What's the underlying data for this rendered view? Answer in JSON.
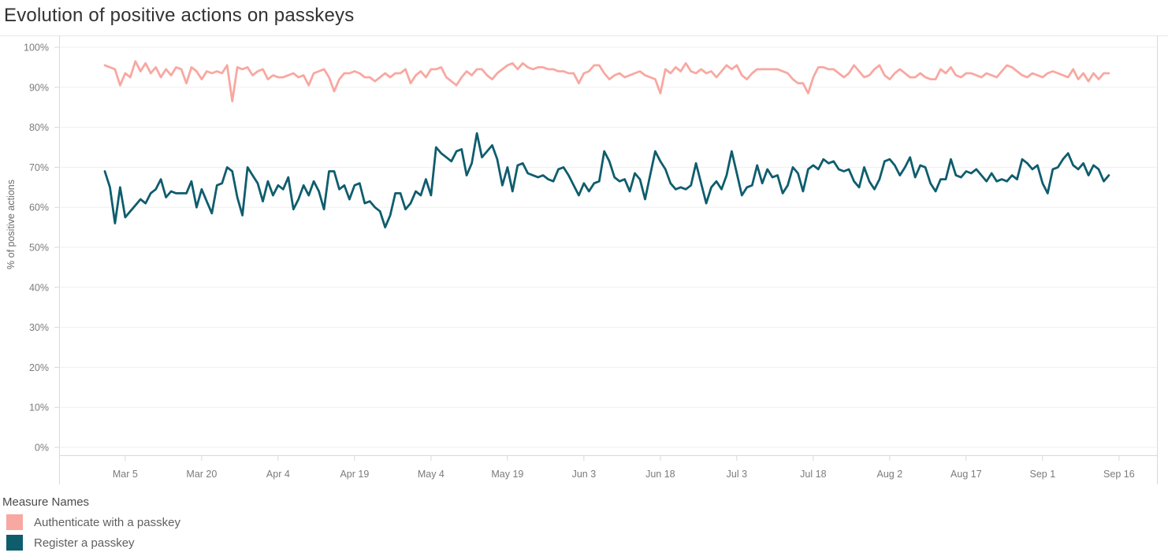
{
  "page": {
    "title": "Evolution of positive actions on passkeys"
  },
  "legend": {
    "title": "Measure Names"
  },
  "colors": {
    "authenticate_line": "#F8A8A1",
    "register_line": "#0E5D6D",
    "gridline": "#efefef",
    "axis_line": "#d9d9d9",
    "tick_label": "#7b7b7b",
    "title_text": "#323232"
  },
  "chart_data": {
    "type": "line",
    "title": "Evolution of positive actions on passkeys",
    "xlabel": "",
    "ylabel": "% of positive actions",
    "ylim": [
      0,
      100
    ],
    "grid": true,
    "legend_position": "bottom-left",
    "y_tick_values": [
      0,
      10,
      20,
      30,
      40,
      50,
      60,
      70,
      80,
      90,
      100
    ],
    "y_tick_labels": [
      "0%",
      "10%",
      "20%",
      "30%",
      "40%",
      "50%",
      "60%",
      "70%",
      "80%",
      "90%",
      "100%"
    ],
    "x_unit": "day",
    "x_start": "Mar 1",
    "x_end": "Sep 14",
    "x_tick_labels": [
      "Mar 5",
      "Mar 20",
      "Apr 4",
      "Apr 19",
      "May 4",
      "May 19",
      "Jun 3",
      "Jun 18",
      "Jul 3",
      "Jul 18",
      "Aug 2",
      "Aug 17",
      "Sep 1",
      "Sep 16"
    ],
    "x_tick_day_indices": [
      4,
      19,
      34,
      49,
      64,
      79,
      94,
      109,
      124,
      139,
      154,
      169,
      184,
      199
    ],
    "series": [
      {
        "name": "Authenticate with a passkey",
        "color": "#F8A8A1",
        "values": [
          95.5,
          95,
          94.5,
          90.5,
          93.5,
          92.5,
          96.5,
          94,
          96,
          93.5,
          95,
          92.5,
          94.5,
          93,
          95,
          94.5,
          91,
          95,
          94,
          92,
          94,
          93.5,
          94,
          93.5,
          95.5,
          86.5,
          95,
          94.5,
          95,
          93,
          94,
          94.5,
          92,
          93,
          92.5,
          92.5,
          93,
          93.5,
          92.5,
          93,
          90.5,
          93.5,
          94,
          94.5,
          92.5,
          89,
          92,
          93.5,
          93.5,
          94,
          93.5,
          92.5,
          92.5,
          91.5,
          92.5,
          93.5,
          92.5,
          93.5,
          93.5,
          94.5,
          91,
          93,
          94,
          92.5,
          94.5,
          94.5,
          95,
          92.5,
          91.5,
          90.5,
          92.5,
          94,
          93,
          94.5,
          94.5,
          93,
          92,
          93.5,
          94.5,
          95.5,
          96,
          94.5,
          96,
          95,
          94.5,
          95,
          95,
          94.5,
          94.5,
          94,
          94,
          93.5,
          93.5,
          91,
          93.5,
          94,
          95.5,
          95.5,
          93.5,
          92,
          93,
          93.5,
          92.5,
          93,
          93.5,
          94,
          93,
          92.5,
          92,
          88.5,
          94.5,
          93.5,
          95,
          94,
          96,
          94,
          93.5,
          94.5,
          93.5,
          94,
          92.5,
          94,
          95.5,
          94.5,
          95.5,
          93,
          92,
          93.5,
          94.5,
          94.5,
          94.5,
          94.5,
          94.5,
          94,
          93.5,
          92,
          91,
          91,
          88.5,
          92.5,
          95,
          95,
          94.5,
          94.5,
          93.5,
          92.5,
          93.5,
          95.5,
          94,
          92.5,
          93,
          94.5,
          95.5,
          93,
          92,
          93.5,
          94.5,
          93.5,
          92.5,
          92.5,
          93.5,
          92.5,
          92,
          92,
          94.5,
          93.5,
          95,
          93,
          92.5,
          93.5,
          93.5,
          93,
          92.5,
          93.5,
          93,
          92.5,
          94,
          95.5,
          95,
          94,
          93,
          92.5,
          93.5,
          93,
          92.5,
          93.5,
          94,
          93.5,
          93,
          92.5,
          94.5,
          92,
          93.5,
          91.5,
          93.5,
          92,
          93.5,
          93.5
        ]
      },
      {
        "name": "Register a passkey",
        "color": "#0E5D6D",
        "values": [
          69,
          65,
          56,
          65,
          57.5,
          59,
          60.5,
          62,
          61,
          63.5,
          64.5,
          67,
          62.5,
          64,
          63.5,
          63.5,
          63.5,
          66.5,
          60,
          64.5,
          61.5,
          58.5,
          65.5,
          66,
          70,
          69,
          62.5,
          58,
          70,
          68,
          66,
          61.5,
          66.5,
          63,
          65.5,
          64.5,
          67.5,
          59.5,
          62,
          65.5,
          63,
          66.5,
          64,
          59.5,
          69,
          69,
          64.5,
          65.5,
          62,
          65.5,
          66,
          61,
          61.5,
          60,
          59,
          55,
          58,
          63.5,
          63.5,
          59.5,
          61,
          64,
          63,
          67,
          63,
          75,
          73.5,
          72.5,
          71.5,
          74,
          74.5,
          68,
          71,
          78.5,
          72.5,
          74,
          75.5,
          72,
          65.5,
          70,
          64,
          70.5,
          71,
          68.5,
          68,
          67.5,
          68,
          67,
          66.5,
          69.5,
          70,
          68,
          65.5,
          63,
          66,
          64,
          66,
          66.5,
          74,
          71.5,
          67.5,
          66.5,
          67,
          64,
          68.5,
          67,
          62,
          68,
          74,
          71.5,
          69.5,
          66,
          64.5,
          65,
          64.5,
          65.5,
          71,
          66,
          61,
          65,
          66.5,
          64.5,
          68,
          74,
          68.5,
          63,
          65,
          65.5,
          70.5,
          66,
          69.5,
          67.5,
          68,
          63.5,
          65.5,
          70,
          68.5,
          64,
          69.5,
          70.5,
          69.5,
          72,
          71,
          71.5,
          69.5,
          69,
          69.5,
          66.5,
          65,
          70,
          66.5,
          64.5,
          67,
          71.5,
          72,
          70.5,
          68,
          70,
          72.5,
          67.5,
          70.5,
          70,
          66,
          64,
          67,
          67,
          72,
          68,
          67.5,
          69,
          68.5,
          69.5,
          68,
          66.5,
          68.5,
          66.5,
          67,
          66.5,
          68,
          67,
          72,
          71,
          69.5,
          70.5,
          66,
          63.5,
          69.5,
          70,
          72,
          73.5,
          70.5,
          69.5,
          71,
          68,
          70.5,
          69.5,
          66.5,
          68
        ]
      }
    ]
  }
}
